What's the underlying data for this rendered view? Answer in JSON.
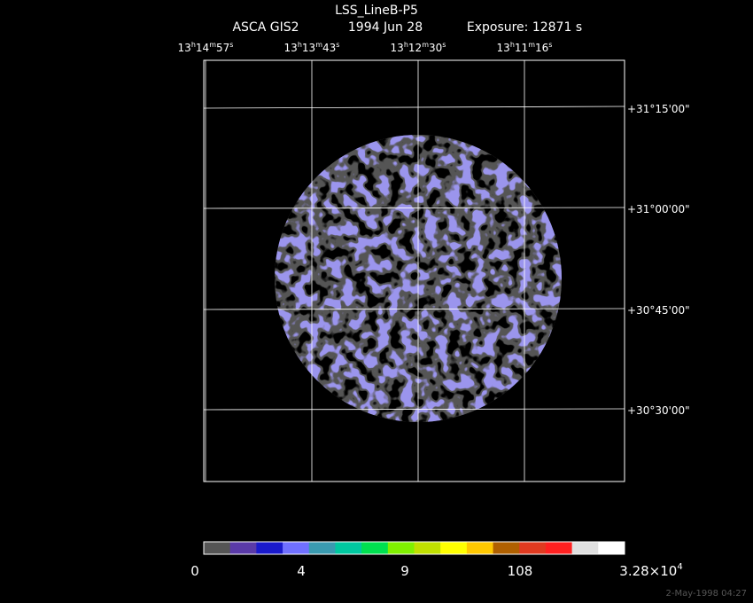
{
  "header": {
    "title": "LSS_LineB-P5",
    "instrument": "ASCA GIS2",
    "date": "1994 Jun 28",
    "exposure": "Exposure: 12871 s"
  },
  "ra_labels": [
    [
      {
        "text": "13"
      },
      {
        "text": "h",
        "sup": true
      },
      {
        "text": "14"
      },
      {
        "text": "m",
        "sup": true
      },
      {
        "text": "57"
      },
      {
        "text": "s",
        "sup": true
      }
    ],
    [
      {
        "text": "13"
      },
      {
        "text": "h",
        "sup": true
      },
      {
        "text": "13"
      },
      {
        "text": "m",
        "sup": true
      },
      {
        "text": "43"
      },
      {
        "text": "s",
        "sup": true
      }
    ],
    [
      {
        "text": "13"
      },
      {
        "text": "h",
        "sup": true
      },
      {
        "text": "12"
      },
      {
        "text": "m",
        "sup": true
      },
      {
        "text": "30"
      },
      {
        "text": "s",
        "sup": true
      }
    ],
    [
      {
        "text": "13"
      },
      {
        "text": "h",
        "sup": true
      },
      {
        "text": "11"
      },
      {
        "text": "m",
        "sup": true
      },
      {
        "text": "16"
      },
      {
        "text": "s",
        "sup": true
      }
    ]
  ],
  "dec_labels": [
    "+31°15'00\"",
    "+31°00'00\"",
    "+30°45'00\"",
    "+30°30'00\""
  ],
  "colorbar": {
    "colors": [
      "#555555",
      "#5a3aa8",
      "#1a1acc",
      "#7070ff",
      "#3a9ab0",
      "#00c8a0",
      "#00e050",
      "#80f000",
      "#c0e000",
      "#ffff00",
      "#ffc800",
      "#b06000",
      "#e03a20",
      "#ff2020",
      "#e0e0e0",
      "#ffffff"
    ],
    "labels": [
      {
        "text": "0"
      },
      {
        "text": "4"
      },
      {
        "text": "9"
      },
      {
        "text": "108"
      },
      {
        "text": "3.28×10",
        "exponent": "4"
      }
    ]
  },
  "footer": "2-May-1998 04:27"
}
